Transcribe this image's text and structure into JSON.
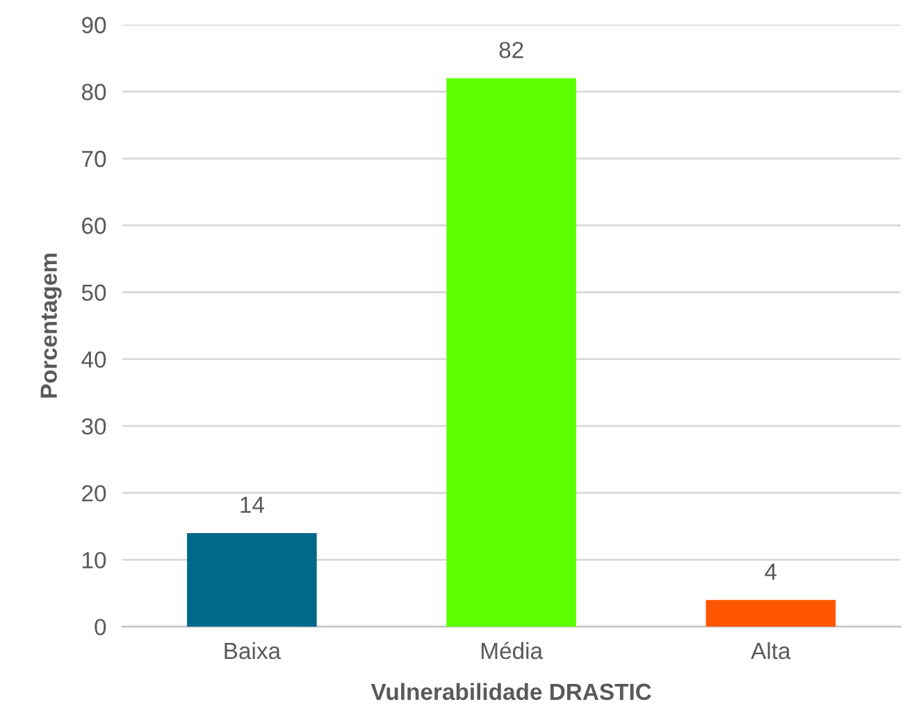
{
  "chart_data": {
    "type": "bar",
    "xlabel": "Vulnerabilidade DRASTIC",
    "ylabel": "Porcentagem",
    "categories": [
      "Baixa",
      "Média",
      "Alta"
    ],
    "values": [
      14,
      82,
      4
    ],
    "colors": [
      "#00688b",
      "#5cff00",
      "#ff5500"
    ],
    "ylim": [
      0,
      90
    ],
    "yticks": [
      0,
      10,
      20,
      30,
      40,
      50,
      60,
      70,
      80,
      90
    ],
    "grid": "y",
    "data_labels": true,
    "legend": false
  }
}
